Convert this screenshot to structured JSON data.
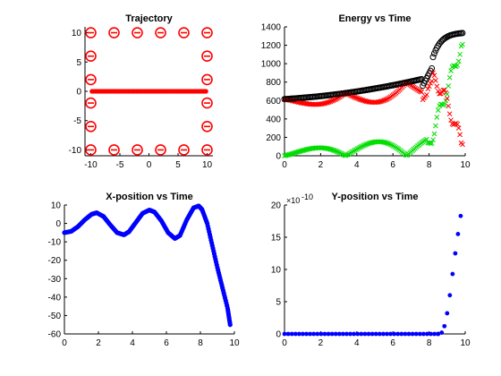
{
  "chart_data": [
    {
      "type": "scatter",
      "title": "Trajectory",
      "xlim": [
        -11,
        11
      ],
      "ylim": [
        -11,
        11
      ],
      "xticks": [
        -10,
        -5,
        0,
        5,
        10
      ],
      "yticks": [
        -10,
        -5,
        0,
        5,
        10
      ],
      "xtick_labels": [
        "-10",
        "-5",
        "0",
        "5",
        "10"
      ],
      "ytick_labels": [
        "-10",
        "-5",
        "0",
        "5",
        "10"
      ],
      "grid": false,
      "series": [
        {
          "marker": "theta-circle",
          "color": "#ff0000",
          "points": [
            [
              -10,
              10
            ],
            [
              -6,
              10
            ],
            [
              -2,
              10
            ],
            [
              2,
              10
            ],
            [
              6,
              10
            ],
            [
              10,
              10
            ],
            [
              -10,
              -10
            ],
            [
              -6,
              -10
            ],
            [
              -2,
              -10
            ],
            [
              2,
              -10
            ],
            [
              6,
              -10
            ],
            [
              10,
              -10
            ],
            [
              -10,
              6
            ],
            [
              -10,
              2
            ],
            [
              -10,
              -2
            ],
            [
              -10,
              -6
            ],
            [
              10,
              6
            ],
            [
              10,
              2
            ],
            [
              10,
              -2
            ],
            [
              10,
              -6
            ]
          ]
        },
        {
          "marker": "dot",
          "color": "#ff0000",
          "x_start": -9.8,
          "x_end": 9.8,
          "count": 60,
          "y": 0
        }
      ]
    },
    {
      "type": "scatter",
      "title": "Energy vs Time",
      "xlim": [
        0,
        10
      ],
      "ylim": [
        0,
        1400
      ],
      "xticks": [
        0,
        2,
        4,
        6,
        8,
        10
      ],
      "yticks": [
        0,
        200,
        400,
        600,
        800,
        1000,
        1200,
        1400
      ],
      "xtick_labels": [
        "0",
        "2",
        "4",
        "6",
        "8",
        "10"
      ],
      "ytick_labels": [
        "0",
        "200",
        "400",
        "600",
        "800",
        "1000",
        "1200",
        "1400"
      ],
      "grid": false,
      "colors": {
        "total": "#000000",
        "potential": "#ff0000",
        "kinetic": "#00dd00"
      },
      "series_markers": {
        "total": "circle",
        "potential": "x",
        "kinetic": "x"
      }
    },
    {
      "type": "scatter",
      "title": "X-position vs Time",
      "xlim": [
        0,
        10
      ],
      "ylim": [
        -60,
        10
      ],
      "xticks": [
        0,
        2,
        4,
        6,
        8,
        10
      ],
      "yticks": [
        -60,
        -50,
        -40,
        -30,
        -20,
        -10,
        0,
        10
      ],
      "xtick_labels": [
        "0",
        "2",
        "4",
        "6",
        "8",
        "10"
      ],
      "ytick_labels": [
        "-60",
        "-50",
        "-40",
        "-30",
        "-20",
        "-10",
        "0",
        "10"
      ],
      "grid": false,
      "color": "#0000ff",
      "series": [
        {
          "x": [
            0,
            0.4,
            0.8,
            1.2,
            1.6,
            1.9,
            2.3,
            2.7,
            3.1,
            3.5,
            3.8,
            4.2,
            4.6,
            5.0,
            5.3,
            5.7,
            6.1,
            6.5,
            6.8,
            7.2,
            7.6,
            7.9,
            8.1,
            8.4,
            8.7,
            9.0,
            9.3,
            9.6,
            9.75
          ],
          "y": [
            -5,
            -4.3,
            -1.7,
            2,
            5,
            5.8,
            3.8,
            -0.8,
            -5,
            -6.2,
            -4.5,
            0.5,
            5.5,
            7.3,
            6.2,
            1.5,
            -5,
            -8.2,
            -6.5,
            2,
            8.5,
            9.5,
            7.5,
            0,
            -12,
            -24,
            -35,
            -46,
            -55
          ]
        }
      ]
    },
    {
      "type": "scatter",
      "title": "Y-position vs Time",
      "exponent_label": "×10",
      "exponent_power": "-10",
      "xlim": [
        0,
        10
      ],
      "ylim": [
        0,
        20
      ],
      "xticks": [
        0,
        2,
        4,
        6,
        8,
        10
      ],
      "yticks": [
        0,
        5,
        10,
        15,
        20
      ],
      "xtick_labels": [
        "0",
        "2",
        "4",
        "6",
        "8",
        "10"
      ],
      "ytick_labels": [
        "0",
        "5",
        "10",
        "15",
        "20"
      ],
      "grid": false,
      "color": "#0000ff",
      "series": [
        {
          "x": [
            0,
            8.5,
            8.7,
            8.85,
            9.0,
            9.15,
            9.3,
            9.45,
            9.6,
            9.75
          ],
          "y": [
            0,
            0,
            0.2,
            1.2,
            3.2,
            6.0,
            9.3,
            12.5,
            15.5,
            18.3
          ]
        }
      ]
    }
  ]
}
